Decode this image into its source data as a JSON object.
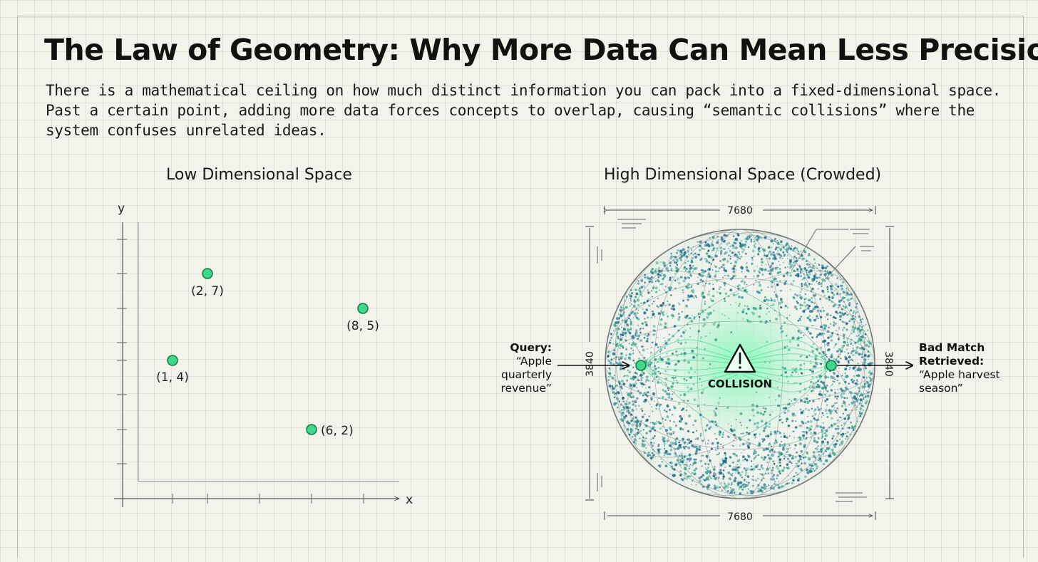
{
  "title": "The Law of Geometry: Why More Data Can Mean Less Precision",
  "subtitle": "There is a mathematical ceiling on how much distinct information you can pack into a fixed-dimensional space. Past a certain point, adding more data forces concepts to overlap, causing “semantic collisions” where the system confuses unrelated ideas.",
  "low_panel": {
    "title": "Low Dimensional Space",
    "x_axis_label": "x",
    "y_axis_label": "y",
    "points": [
      {
        "label": "(2, 7)"
      },
      {
        "label": "(8, 5)"
      },
      {
        "label": "(1, 4)"
      },
      {
        "label": "(6, 2)"
      }
    ]
  },
  "high_panel": {
    "title": "High Dimensional Space (Crowded)",
    "width_top": "7680",
    "width_bottom": "7680",
    "height_left": "3840",
    "height_right": "3840",
    "collision_label": "COLLISION",
    "query": {
      "heading": "Query:",
      "text": "“Apple quarterly revenue”"
    },
    "bad_match": {
      "heading": "Bad Match Retrieved:",
      "text": "“Apple harvest season”"
    }
  },
  "colors": {
    "point_fill": "#3fd88a",
    "point_stroke": "#137a44",
    "sphere_teal": "#2a8c8a",
    "glow": "#5cf0a0",
    "ink": "#111111"
  }
}
